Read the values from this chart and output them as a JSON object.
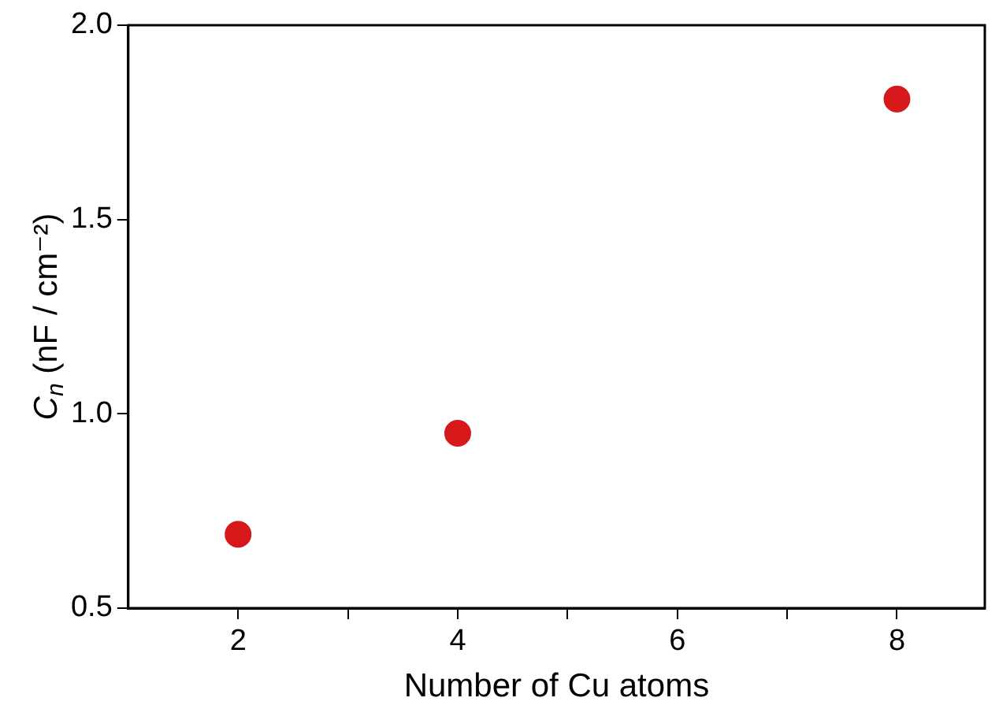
{
  "chart_data": {
    "type": "scatter",
    "xlabel": "Number of Cu atoms",
    "ylabel": "C$_{n}$ (nF / cm⁻²)",
    "x": [
      2,
      4,
      8
    ],
    "series": [
      {
        "color": "#d7191c",
        "values": [
          0.69,
          0.95,
          1.81
        ]
      }
    ],
    "xlim": [
      1,
      8.8
    ],
    "xticks": [
      2,
      {
        "value": 3,
        "label": null
      },
      4,
      {
        "value": 5,
        "label": null
      },
      6,
      {
        "value": 7,
        "label": null
      },
      8
    ],
    "ylim": [
      0.5,
      2.0
    ],
    "yticks": [
      0.5,
      {
        "value": 1,
        "label": "1.0"
      },
      1.5,
      {
        "value": 2,
        "label": "2.0"
      }
    ],
    "grid": false,
    "legend": false,
    "marker": "circle"
  }
}
